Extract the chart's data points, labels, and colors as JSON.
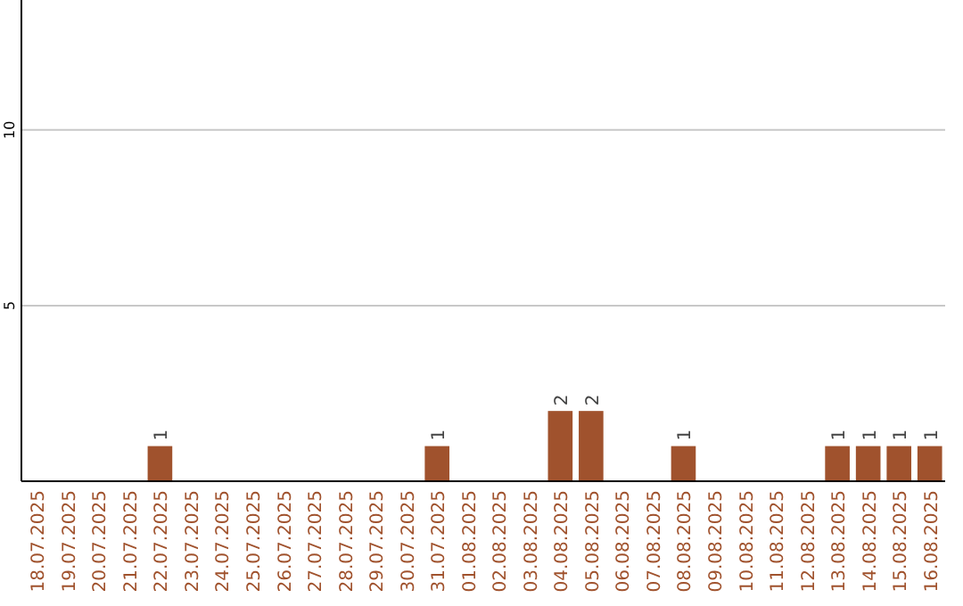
{
  "chart_data": {
    "type": "bar",
    "categories": [
      "18.07.2025",
      "19.07.2025",
      "20.07.2025",
      "21.07.2025",
      "22.07.2025",
      "23.07.2025",
      "24.07.2025",
      "25.07.2025",
      "26.07.2025",
      "27.07.2025",
      "28.07.2025",
      "29.07.2025",
      "30.07.2025",
      "31.07.2025",
      "01.08.2025",
      "02.08.2025",
      "03.08.2025",
      "04.08.2025",
      "05.08.2025",
      "06.08.2025",
      "07.08.2025",
      "08.08.2025",
      "09.08.2025",
      "10.08.2025",
      "11.08.2025",
      "12.08.2025",
      "13.08.2025",
      "14.08.2025",
      "15.08.2025",
      "16.08.2025"
    ],
    "values": [
      0,
      0,
      0,
      0,
      1,
      0,
      0,
      0,
      0,
      0,
      0,
      0,
      0,
      1,
      0,
      0,
      0,
      2,
      2,
      0,
      0,
      1,
      0,
      0,
      0,
      0,
      1,
      1,
      1,
      1
    ],
    "value_labels": [
      null,
      null,
      null,
      null,
      "1",
      null,
      null,
      null,
      null,
      null,
      null,
      null,
      null,
      "1",
      null,
      null,
      null,
      "2",
      "2",
      null,
      null,
      "1",
      null,
      null,
      null,
      null,
      "1",
      "1",
      "1",
      "1"
    ],
    "color": "#a0522d",
    "ylim": [
      0,
      13.7
    ],
    "yticks": [
      5,
      10
    ],
    "grid": "y"
  }
}
